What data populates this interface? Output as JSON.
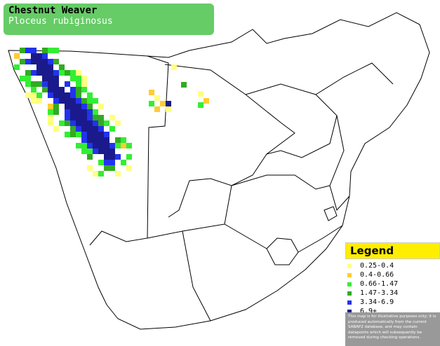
{
  "header": {
    "title": "Chestnut Weaver",
    "subtitle": "Ploceus rubiginosus"
  },
  "legend": {
    "title": "Legend",
    "items": [
      {
        "label": "0.25-0.4",
        "color": "#ffff80"
      },
      {
        "label": "0.4-0.66",
        "color": "#ffcc33"
      },
      {
        "label": "0.66-1.47",
        "color": "#33ee33"
      },
      {
        "label": "1.47-3.34",
        "color": "#33aa22"
      },
      {
        "label": "3.34-6.9",
        "color": "#2233ee"
      },
      {
        "label": "6.9+",
        "color": "#1a1a8c"
      }
    ],
    "note": "This map is for illustrative purposes only; it is produced automatically from the current SABAP2 database, and may contain datapoints which will subsequently be removed during checking operations."
  }
}
